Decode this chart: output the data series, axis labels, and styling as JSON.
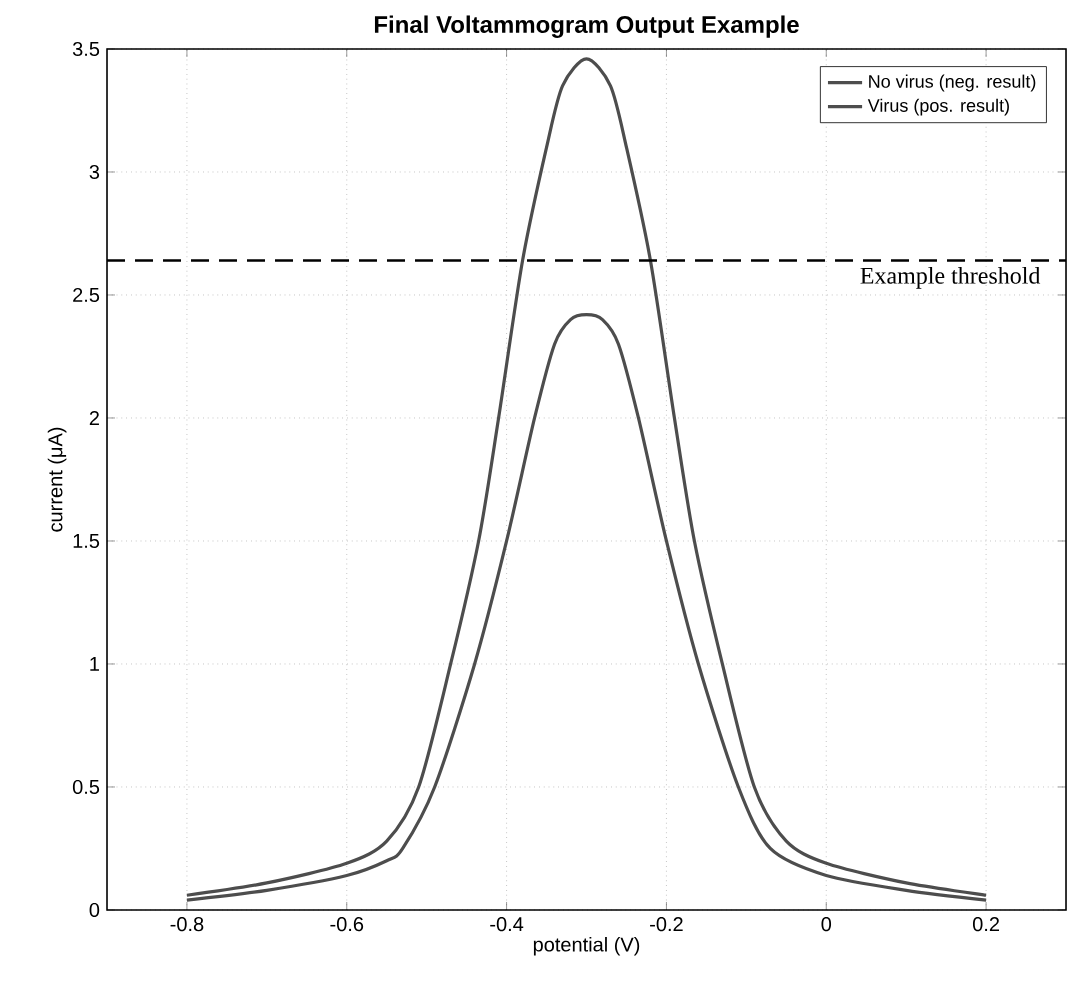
{
  "chart_data": {
    "type": "line",
    "title": "Final Voltammogram Output Example",
    "xlabel": "potential (V)",
    "ylabel": "current (μA)",
    "xlim": [
      -0.9,
      0.3
    ],
    "ylim": [
      0,
      3.5
    ],
    "xticks": [
      -0.8,
      -0.6,
      -0.4,
      -0.2,
      0,
      0.2
    ],
    "yticks": [
      0,
      0.5,
      1,
      1.5,
      2,
      2.5,
      3,
      3.5
    ],
    "grid": true,
    "legend": "top right",
    "line_style": "solid",
    "marker": "none",
    "series": [
      {
        "name": "No virus (neg. result)",
        "color": "#4d4d4d",
        "x": [
          -0.8,
          -0.7,
          -0.6,
          -0.55,
          -0.53,
          -0.49,
          -0.44,
          -0.4,
          -0.365,
          -0.34,
          -0.32,
          -0.3,
          -0.28,
          -0.26,
          -0.235,
          -0.2,
          -0.16,
          -0.11,
          -0.07,
          0,
          0.1,
          0.2
        ],
        "values": [
          0.04,
          0.08,
          0.14,
          0.2,
          0.25,
          0.5,
          1.0,
          1.5,
          2.0,
          2.3,
          2.4,
          2.42,
          2.4,
          2.3,
          2.0,
          1.5,
          1.0,
          0.5,
          0.25,
          0.14,
          0.08,
          0.04
        ]
      },
      {
        "name": "Virus (pos. result)",
        "color": "#4d4d4d",
        "x": [
          -0.8,
          -0.7,
          -0.6,
          -0.55,
          -0.51,
          -0.47,
          -0.435,
          -0.41,
          -0.38,
          -0.35,
          -0.33,
          -0.3,
          -0.27,
          -0.25,
          -0.22,
          -0.19,
          -0.165,
          -0.13,
          -0.09,
          -0.05,
          0,
          0.1,
          0.2
        ],
        "values": [
          0.06,
          0.11,
          0.19,
          0.28,
          0.5,
          1.0,
          1.5,
          2.0,
          2.64,
          3.1,
          3.35,
          3.46,
          3.35,
          3.1,
          2.64,
          2.0,
          1.5,
          1.0,
          0.5,
          0.28,
          0.19,
          0.11,
          0.06
        ]
      }
    ],
    "ref_lines": [
      {
        "axis": "y",
        "value": 2.64,
        "label": "Example threshold",
        "color": "#000000",
        "line_style": "dashed"
      }
    ]
  }
}
